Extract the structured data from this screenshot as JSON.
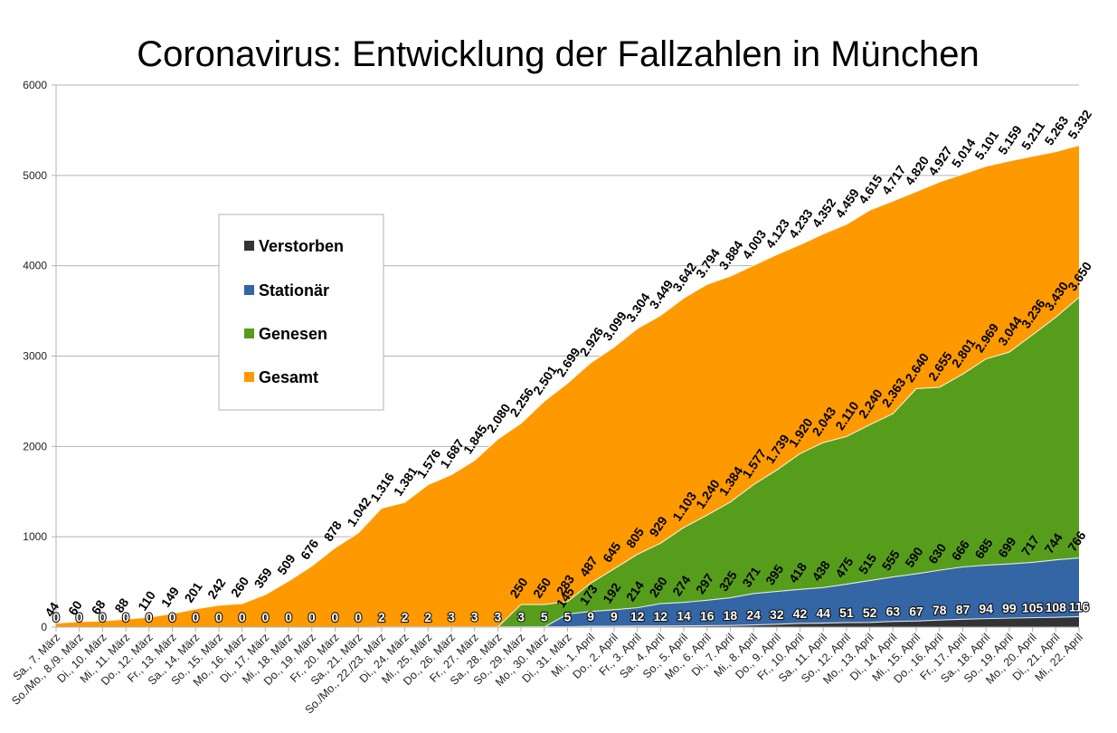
{
  "chart_data": {
    "type": "area",
    "title": "Coronavirus: Entwicklung der Fallzahlen in München",
    "xlabel": "",
    "ylabel": "",
    "ylim": [
      0,
      6000
    ],
    "yticks": [
      0,
      1000,
      2000,
      3000,
      4000,
      5000,
      6000
    ],
    "grid": true,
    "legend": {
      "placement": "upper-left inside plot"
    },
    "number_format": "German thousands separator '.'",
    "categories": [
      "Sa., 7. März",
      "So./Mo., 8./9. März",
      "Di., 10. März",
      "Mi., 11. März",
      "Do., 12. März",
      "Fr., 13. März",
      "Sa., 14. März",
      "So., 15. März",
      "Mo., 16. März",
      "Di., 17. März",
      "Mi., 18. März",
      "Do., 19. März",
      "Fr., 20. März",
      "Sa., 21. März",
      "So./Mo., 22./23. März",
      "Di., 24. März",
      "Mi., 25. März",
      "Do., 26. März",
      "Fr., 27. März",
      "Sa., 28. März",
      "So., 29. März",
      "Mo., 30. März",
      "Di., 31. März",
      "Mi., 1. April",
      "Do., 2. April",
      "Fr., 3. April",
      "Sa., 4. April",
      "So., 5. April",
      "Mo., 6. April",
      "Di., 7. April",
      "Mi., 8. April",
      "Do., 9. April",
      "Fr., 10. April",
      "Sa., 11. April",
      "So., 12. April",
      "Mo., 13. April",
      "Di., 14. April",
      "Mi., 15. April",
      "Do., 16. April",
      "Fr., 17. April",
      "Sa., 18. April",
      "So., 19. April",
      "Mo., 20. April",
      "Di., 21. April",
      "Mi., 22. April"
    ],
    "series": [
      {
        "name": "Verstorben",
        "color": "#333333",
        "label_style": "light",
        "values": [
          0,
          0,
          0,
          0,
          0,
          0,
          0,
          0,
          0,
          0,
          0,
          0,
          0,
          0,
          2,
          2,
          2,
          3,
          3,
          3,
          3,
          5,
          5,
          9,
          9,
          12,
          12,
          14,
          16,
          18,
          24,
          32,
          42,
          44,
          51,
          52,
          63,
          67,
          78,
          87,
          94,
          99,
          105,
          108,
          116
        ]
      },
      {
        "name": "Stationär",
        "color": "#3465a4",
        "label_style": "dark",
        "values": [
          null,
          null,
          null,
          null,
          null,
          null,
          null,
          null,
          null,
          null,
          null,
          null,
          null,
          null,
          null,
          null,
          null,
          null,
          null,
          null,
          null,
          null,
          145,
          173,
          192,
          214,
          260,
          274,
          297,
          325,
          371,
          395,
          418,
          438,
          475,
          515,
          555,
          590,
          630,
          666,
          685,
          699,
          717,
          744,
          766
        ]
      },
      {
        "name": "Genesen",
        "color": "#579d1c",
        "label_style": "dark",
        "values": [
          null,
          null,
          null,
          null,
          null,
          null,
          null,
          null,
          null,
          null,
          null,
          null,
          null,
          null,
          null,
          null,
          null,
          null,
          null,
          null,
          250,
          250,
          283,
          487,
          645,
          805,
          929,
          1103,
          1240,
          1384,
          1577,
          1739,
          1920,
          2043,
          2110,
          2240,
          2363,
          2640,
          2655,
          2801,
          2969,
          3044,
          3236,
          3430,
          3650
        ]
      },
      {
        "name": "Gesamt",
        "color": "#ff9900",
        "label_style": "dark",
        "values": [
          44,
          60,
          68,
          88,
          110,
          149,
          201,
          242,
          260,
          359,
          509,
          676,
          878,
          1042,
          1316,
          1381,
          1576,
          1687,
          1845,
          2080,
          2256,
          2501,
          2699,
          2926,
          3099,
          3304,
          3449,
          3642,
          3794,
          3884,
          4003,
          4123,
          4233,
          4352,
          4459,
          4615,
          4717,
          4820,
          4927,
          5014,
          5101,
          5159,
          5211,
          5263,
          5332
        ]
      }
    ]
  }
}
